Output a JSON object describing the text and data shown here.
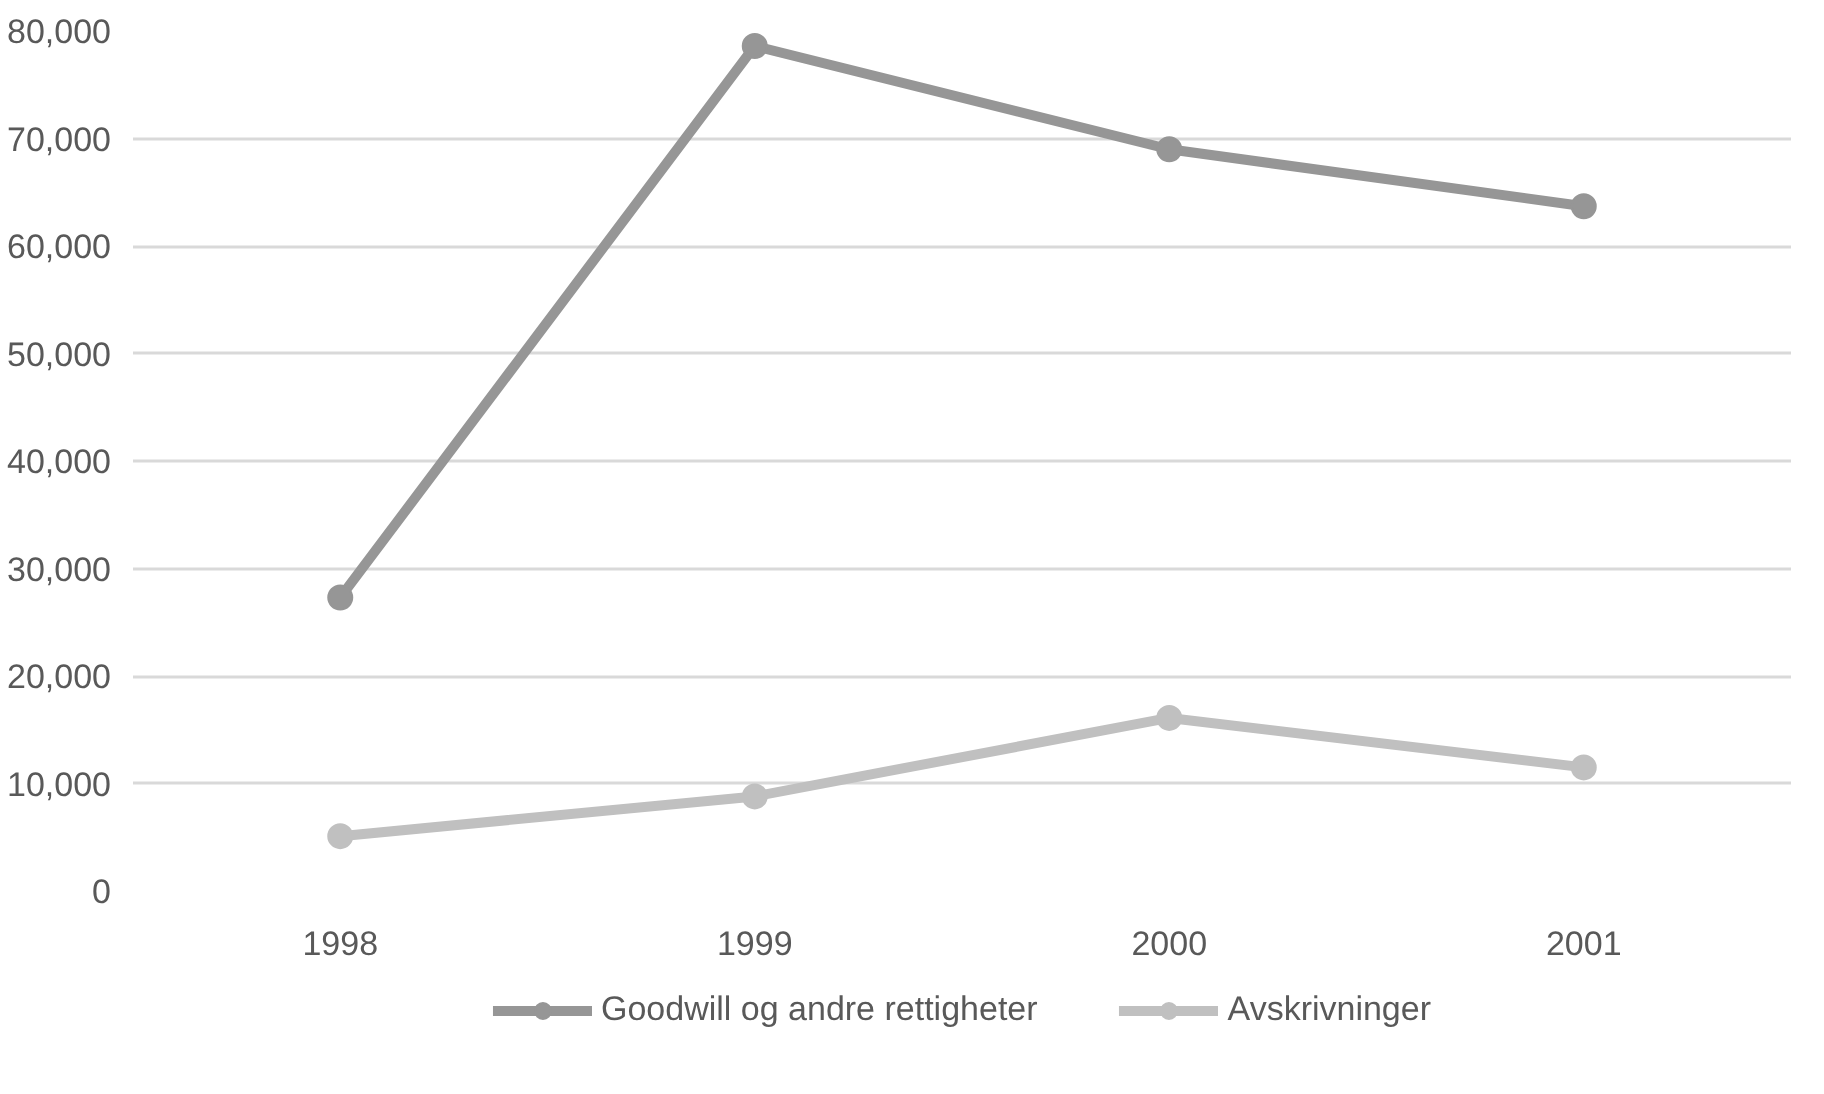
{
  "chart_data": {
    "type": "line",
    "categories": [
      "1998",
      "1999",
      "2000",
      "2001"
    ],
    "series": [
      {
        "name": "Goodwill og andre rettigheter",
        "color": "#969696",
        "values": [
          27300,
          78600,
          69000,
          63700
        ]
      },
      {
        "name": "Avskrivninger",
        "color": "#c0c0c0",
        "values": [
          5100,
          8800,
          16100,
          11500
        ]
      }
    ],
    "ylim": [
      0,
      80000
    ],
    "yticks": [
      {
        "value": 0,
        "label": "0"
      },
      {
        "value": 10000,
        "label": "10,000"
      },
      {
        "value": 20000,
        "label": "20,000"
      },
      {
        "value": 30000,
        "label": "30,000"
      },
      {
        "value": 40000,
        "label": "40,000"
      },
      {
        "value": 50000,
        "label": "50,000"
      },
      {
        "value": 60000,
        "label": "60,000"
      },
      {
        "value": 70000,
        "label": "70,000"
      },
      {
        "value": 80000,
        "label": "80,000"
      }
    ],
    "grid": "y",
    "legend": "bottom",
    "marker": "circle",
    "line_style": "solid"
  }
}
